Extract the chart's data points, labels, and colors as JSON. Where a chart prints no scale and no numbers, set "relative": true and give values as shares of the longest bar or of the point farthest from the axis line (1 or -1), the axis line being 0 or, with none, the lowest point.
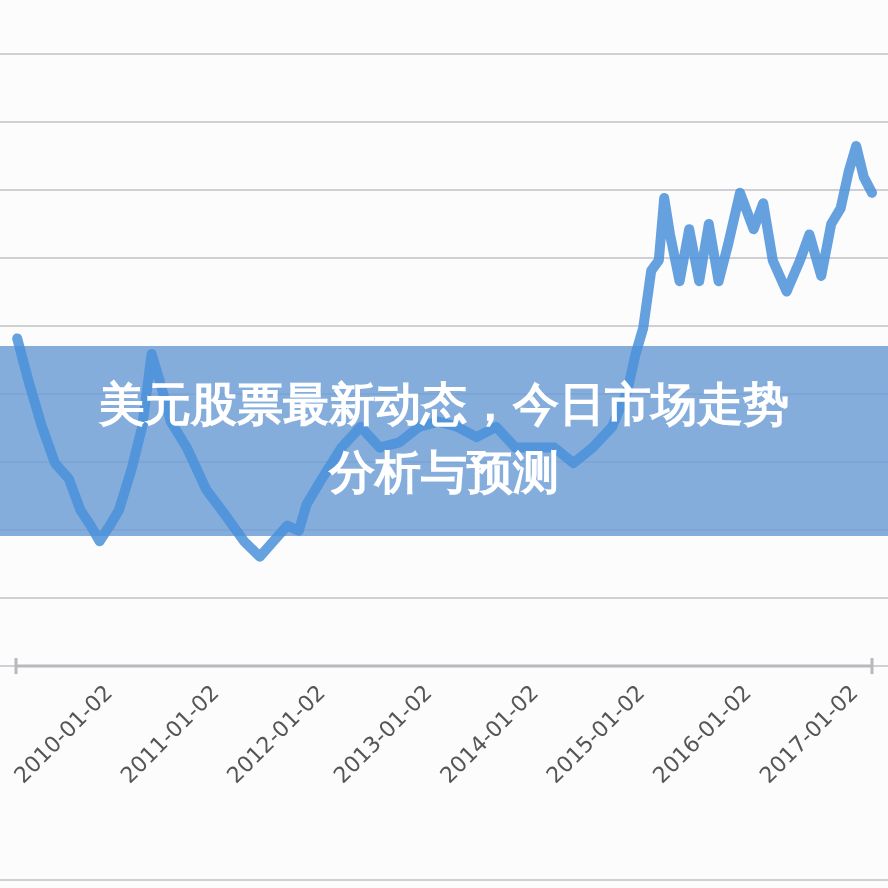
{
  "chart_data": {
    "type": "line",
    "title": "美元股票最新动态，今日市场走势分析与预测",
    "relative": true,
    "grid": "y",
    "marker": "none",
    "line_style": "solid",
    "xlim": [
      "2009-02-01",
      "2017-02-15"
    ],
    "xticks": [
      "2010-01-02",
      "2011-01-02",
      "2012-01-02",
      "2013-01-02",
      "2014-01-02",
      "2015-01-02",
      "2016-01-02",
      "2017-01-02"
    ],
    "x": [
      "2009-02-05",
      "2009-03-15",
      "2009-05-01",
      "2009-06-15",
      "2009-08-01",
      "2009-09-10",
      "2009-10-15",
      "2009-11-15",
      "2009-12-20",
      "2010-01-20",
      "2010-03-05",
      "2010-04-10",
      "2010-05-12",
      "2010-06-08",
      "2010-07-17",
      "2010-09-10",
      "2010-11-15",
      "2011-01-20",
      "2011-03-25",
      "2011-05-18",
      "2011-07-04",
      "2011-08-20",
      "2011-09-29",
      "2011-10-25",
      "2011-12-17",
      "2012-02-22",
      "2012-04-28",
      "2012-07-03",
      "2012-09-08",
      "2012-11-14",
      "2013-01-20",
      "2013-03-25",
      "2013-05-31",
      "2013-08-06",
      "2013-10-11",
      "2013-12-17",
      "2014-02-22",
      "2014-04-28",
      "2014-07-03",
      "2014-09-08",
      "2014-10-30",
      "2014-11-27",
      "2014-12-23",
      "2015-01-20",
      "2015-02-15",
      "2015-03-05",
      "2015-03-25",
      "2015-04-27",
      "2015-05-30",
      "2015-07-03",
      "2015-08-05",
      "2015-09-08",
      "2015-10-10",
      "2015-11-20",
      "2016-01-06",
      "2016-02-08",
      "2016-03-12",
      "2016-04-28",
      "2016-06-13",
      "2016-07-15",
      "2016-08-25",
      "2016-09-28",
      "2016-10-30",
      "2016-11-27",
      "2016-12-23",
      "2017-01-18",
      "2017-02-15"
    ],
    "series": [
      {
        "color": "#4a90d9",
        "values": [
          0.63,
          0.55,
          0.46,
          0.39,
          0.36,
          0.3,
          0.27,
          0.24,
          0.27,
          0.3,
          0.38,
          0.46,
          0.6,
          0.55,
          0.47,
          0.42,
          0.34,
          0.29,
          0.24,
          0.21,
          0.24,
          0.27,
          0.26,
          0.31,
          0.36,
          0.42,
          0.46,
          0.42,
          0.43,
          0.46,
          0.47,
          0.46,
          0.44,
          0.46,
          0.42,
          0.42,
          0.42,
          0.39,
          0.42,
          0.46,
          0.53,
          0.6,
          0.65,
          0.76,
          0.78,
          0.9,
          0.83,
          0.74,
          0.84,
          0.74,
          0.85,
          0.74,
          0.81,
          0.91,
          0.84,
          0.89,
          0.78,
          0.72,
          0.78,
          0.83,
          0.75,
          0.85,
          0.88,
          0.95,
          1,
          0.94,
          0.91
        ]
      }
    ]
  }
}
